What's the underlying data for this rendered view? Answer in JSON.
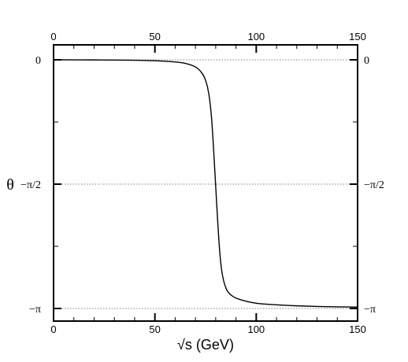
{
  "chart_data": {
    "type": "line",
    "title": "",
    "xlabel": "√s   (GeV)",
    "ylabel": "θ",
    "xlim": [
      0,
      150
    ],
    "ylim": [
      -3.14159,
      0
    ],
    "x_ticks": [
      0,
      50,
      100,
      150
    ],
    "x_tick_labels": [
      "0",
      "50",
      "100",
      "150"
    ],
    "y_ticks": [
      0,
      -1.5708,
      -3.14159
    ],
    "y_tick_labels": [
      "0",
      "−π/2",
      "−π"
    ],
    "gridlines": "dotted horizontal at y tick values",
    "mirrored_axes": true,
    "series": [
      {
        "x": [
          0,
          10,
          20,
          30,
          40,
          50,
          55,
          60,
          65,
          70,
          72,
          74,
          75,
          76,
          77,
          78,
          79,
          80,
          81,
          82,
          83,
          84,
          85,
          86,
          88,
          90,
          95,
          100,
          110,
          120,
          130,
          140,
          150
        ],
        "y": [
          0,
          -0.0003,
          -0.0012,
          -0.003,
          -0.006,
          -0.012,
          -0.018,
          -0.027,
          -0.045,
          -0.09,
          -0.13,
          -0.2,
          -0.26,
          -0.35,
          -0.5,
          -0.75,
          -1.15,
          -1.6,
          -2.05,
          -2.43,
          -2.67,
          -2.8,
          -2.88,
          -2.93,
          -2.98,
          -3.01,
          -3.05,
          -3.075,
          -3.095,
          -3.108,
          -3.116,
          -3.121,
          -3.124
        ]
      }
    ]
  }
}
